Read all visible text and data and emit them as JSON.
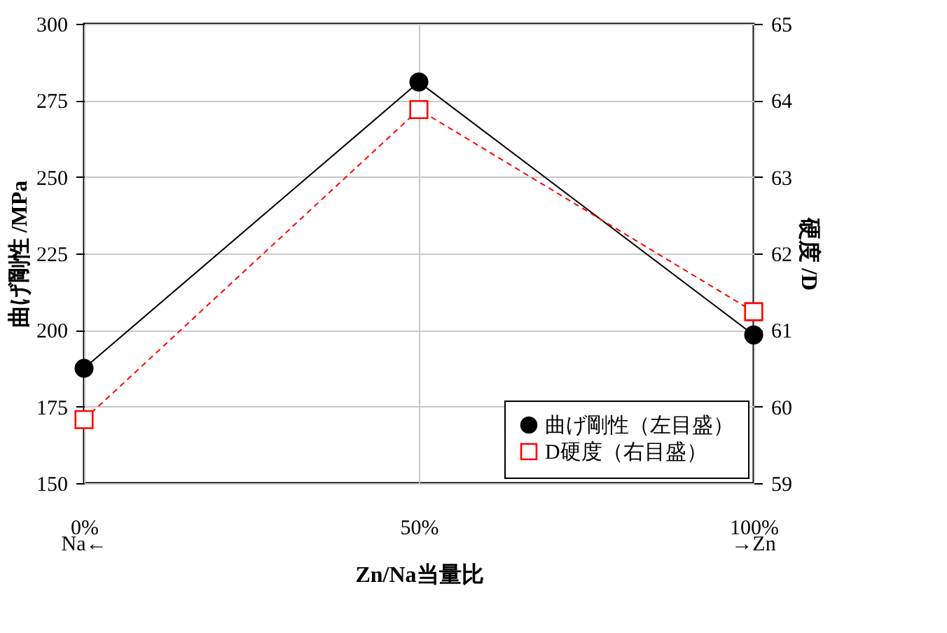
{
  "chart_data": {
    "type": "line",
    "x": [
      0,
      50,
      100
    ],
    "xlim": [
      0,
      100
    ],
    "xticks": [
      {
        "value": 0,
        "label": "0%"
      },
      {
        "value": 50,
        "label": "50%"
      },
      {
        "value": 100,
        "label": "100%"
      }
    ],
    "xlabel": "Zn/Na当量比",
    "ylabel": "曲げ剛性 /MPa",
    "y2label": "硬度 /D",
    "ylim": [
      150,
      300
    ],
    "yticks": [
      150,
      175,
      200,
      225,
      250,
      275,
      300
    ],
    "y2lim": [
      59,
      65
    ],
    "y2ticks": [
      59,
      60,
      61,
      62,
      63,
      64,
      65
    ],
    "series": [
      {
        "name": "曲げ剛性（左目盛）",
        "color": "#000000",
        "values": [
          187.5,
          281,
          198.4
        ],
        "marker": "circle",
        "line_style": "solid"
      },
      {
        "name": "D硬度（右目盛）",
        "color": "#ff0000",
        "values": [
          59.83,
          63.88,
          61.24
        ],
        "marker": "square",
        "line_style": "dashed",
        "axis": "y2"
      }
    ],
    "annotations": [
      "Na←",
      "→Zn"
    ],
    "grid": true,
    "legend": "bottom right"
  }
}
